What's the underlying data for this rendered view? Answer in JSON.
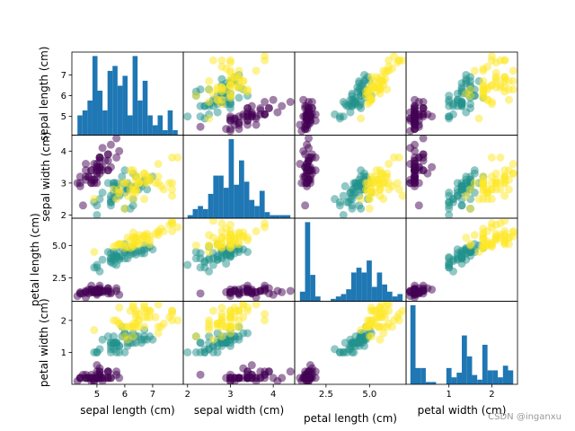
{
  "chart_data": {
    "type": "scatter-matrix",
    "variables": [
      "sepal length (cm)",
      "sepal width (cm)",
      "petal length (cm)",
      "petal width (cm)"
    ],
    "ranges": [
      [
        4.1,
        8.1
      ],
      [
        1.9,
        4.5
      ],
      [
        0.7,
        7.1
      ],
      [
        0.0,
        2.6
      ]
    ],
    "ticks": [
      [
        5,
        6,
        7
      ],
      [
        2,
        3,
        4
      ],
      [
        2.5,
        5.0
      ],
      [
        1,
        2
      ]
    ],
    "tick_labels": [
      [
        "5",
        "6",
        "7"
      ],
      [
        "2",
        "3",
        "4"
      ],
      [
        "2.5",
        "5.0"
      ],
      [
        "1",
        "2"
      ]
    ],
    "histogram_color": "#1f77b4",
    "histogram_bins": 20,
    "class_colors": {
      "setosa": "#440154",
      "versicolor": "#21918c",
      "virginica": "#fde725"
    },
    "point_alpha": 0.5,
    "classes": {
      "setosa": [
        [
          5.1,
          3.5,
          1.4,
          0.2
        ],
        [
          4.9,
          3.0,
          1.4,
          0.2
        ],
        [
          4.7,
          3.2,
          1.3,
          0.2
        ],
        [
          4.6,
          3.1,
          1.5,
          0.2
        ],
        [
          5.0,
          3.6,
          1.4,
          0.2
        ],
        [
          5.4,
          3.9,
          1.7,
          0.4
        ],
        [
          4.6,
          3.4,
          1.4,
          0.3
        ],
        [
          5.0,
          3.4,
          1.5,
          0.2
        ],
        [
          4.4,
          2.9,
          1.4,
          0.2
        ],
        [
          4.9,
          3.1,
          1.5,
          0.1
        ],
        [
          5.4,
          3.7,
          1.5,
          0.2
        ],
        [
          4.8,
          3.4,
          1.6,
          0.2
        ],
        [
          4.8,
          3.0,
          1.4,
          0.1
        ],
        [
          4.3,
          3.0,
          1.1,
          0.1
        ],
        [
          5.8,
          4.0,
          1.2,
          0.2
        ],
        [
          5.7,
          4.4,
          1.5,
          0.4
        ],
        [
          5.4,
          3.9,
          1.3,
          0.4
        ],
        [
          5.1,
          3.5,
          1.4,
          0.3
        ],
        [
          5.7,
          3.8,
          1.7,
          0.3
        ],
        [
          5.1,
          3.8,
          1.5,
          0.3
        ],
        [
          5.4,
          3.4,
          1.7,
          0.2
        ],
        [
          5.1,
          3.7,
          1.5,
          0.4
        ],
        [
          4.6,
          3.6,
          1.0,
          0.2
        ],
        [
          5.1,
          3.3,
          1.7,
          0.5
        ],
        [
          4.8,
          3.4,
          1.9,
          0.2
        ],
        [
          5.0,
          3.0,
          1.6,
          0.2
        ],
        [
          5.0,
          3.4,
          1.6,
          0.4
        ],
        [
          5.2,
          3.5,
          1.5,
          0.2
        ],
        [
          5.2,
          3.4,
          1.4,
          0.2
        ],
        [
          4.7,
          3.2,
          1.6,
          0.2
        ],
        [
          4.8,
          3.1,
          1.6,
          0.2
        ],
        [
          5.4,
          3.4,
          1.5,
          0.4
        ],
        [
          5.2,
          4.1,
          1.5,
          0.1
        ],
        [
          5.5,
          4.2,
          1.4,
          0.2
        ],
        [
          4.9,
          3.1,
          1.5,
          0.2
        ],
        [
          5.0,
          3.2,
          1.2,
          0.2
        ],
        [
          5.5,
          3.5,
          1.3,
          0.2
        ],
        [
          4.9,
          3.6,
          1.4,
          0.1
        ],
        [
          4.4,
          3.0,
          1.3,
          0.2
        ],
        [
          5.1,
          3.4,
          1.5,
          0.2
        ],
        [
          5.0,
          3.5,
          1.3,
          0.3
        ],
        [
          4.5,
          2.3,
          1.3,
          0.3
        ],
        [
          4.4,
          3.2,
          1.3,
          0.2
        ],
        [
          5.0,
          3.5,
          1.6,
          0.6
        ],
        [
          5.1,
          3.8,
          1.9,
          0.4
        ],
        [
          4.8,
          3.0,
          1.4,
          0.3
        ],
        [
          5.1,
          3.8,
          1.6,
          0.2
        ],
        [
          4.6,
          3.2,
          1.4,
          0.2
        ],
        [
          5.3,
          3.7,
          1.5,
          0.2
        ],
        [
          5.0,
          3.3,
          1.4,
          0.2
        ]
      ],
      "versicolor": [
        [
          7.0,
          3.2,
          4.7,
          1.4
        ],
        [
          6.4,
          3.2,
          4.5,
          1.5
        ],
        [
          6.9,
          3.1,
          4.9,
          1.5
        ],
        [
          5.5,
          2.3,
          4.0,
          1.3
        ],
        [
          6.5,
          2.8,
          4.6,
          1.5
        ],
        [
          5.7,
          2.8,
          4.5,
          1.3
        ],
        [
          6.3,
          3.3,
          4.7,
          1.6
        ],
        [
          4.9,
          2.4,
          3.3,
          1.0
        ],
        [
          6.6,
          2.9,
          4.6,
          1.3
        ],
        [
          5.2,
          2.7,
          3.9,
          1.4
        ],
        [
          5.0,
          2.0,
          3.5,
          1.0
        ],
        [
          5.9,
          3.0,
          4.2,
          1.5
        ],
        [
          6.0,
          2.2,
          4.0,
          1.0
        ],
        [
          6.1,
          2.9,
          4.7,
          1.4
        ],
        [
          5.6,
          2.9,
          3.6,
          1.3
        ],
        [
          6.7,
          3.1,
          4.4,
          1.4
        ],
        [
          5.6,
          3.0,
          4.5,
          1.5
        ],
        [
          5.8,
          2.7,
          4.1,
          1.0
        ],
        [
          6.2,
          2.2,
          4.5,
          1.5
        ],
        [
          5.6,
          2.5,
          3.9,
          1.1
        ],
        [
          5.9,
          3.2,
          4.8,
          1.8
        ],
        [
          6.1,
          2.8,
          4.0,
          1.3
        ],
        [
          6.3,
          2.5,
          4.9,
          1.5
        ],
        [
          6.1,
          2.8,
          4.7,
          1.2
        ],
        [
          6.4,
          2.9,
          4.3,
          1.3
        ],
        [
          6.6,
          3.0,
          4.4,
          1.4
        ],
        [
          6.8,
          2.8,
          4.8,
          1.4
        ],
        [
          6.7,
          3.0,
          5.0,
          1.7
        ],
        [
          6.0,
          2.9,
          4.5,
          1.5
        ],
        [
          5.7,
          2.6,
          3.5,
          1.0
        ],
        [
          5.5,
          2.4,
          3.8,
          1.1
        ],
        [
          5.5,
          2.4,
          3.7,
          1.0
        ],
        [
          5.8,
          2.7,
          3.9,
          1.2
        ],
        [
          6.0,
          2.7,
          5.1,
          1.6
        ],
        [
          5.4,
          3.0,
          4.5,
          1.5
        ],
        [
          6.0,
          3.4,
          4.5,
          1.6
        ],
        [
          6.7,
          3.1,
          4.7,
          1.5
        ],
        [
          6.3,
          2.3,
          4.4,
          1.3
        ],
        [
          5.6,
          3.0,
          4.1,
          1.3
        ],
        [
          5.5,
          2.5,
          4.0,
          1.3
        ],
        [
          5.5,
          2.6,
          4.4,
          1.2
        ],
        [
          6.1,
          3.0,
          4.6,
          1.4
        ],
        [
          5.8,
          2.6,
          4.0,
          1.2
        ],
        [
          5.0,
          2.3,
          3.3,
          1.0
        ],
        [
          5.6,
          2.7,
          4.2,
          1.3
        ],
        [
          5.7,
          3.0,
          4.2,
          1.2
        ],
        [
          5.7,
          2.9,
          4.2,
          1.3
        ],
        [
          6.2,
          2.9,
          4.3,
          1.3
        ],
        [
          5.1,
          2.5,
          3.0,
          1.1
        ],
        [
          5.7,
          2.8,
          4.1,
          1.3
        ]
      ],
      "virginica": [
        [
          6.3,
          3.3,
          6.0,
          2.5
        ],
        [
          5.8,
          2.7,
          5.1,
          1.9
        ],
        [
          7.1,
          3.0,
          5.9,
          2.1
        ],
        [
          6.3,
          2.9,
          5.6,
          1.8
        ],
        [
          6.5,
          3.0,
          5.8,
          2.2
        ],
        [
          7.6,
          3.0,
          6.6,
          2.1
        ],
        [
          4.9,
          2.5,
          4.5,
          1.7
        ],
        [
          7.3,
          2.9,
          6.3,
          1.8
        ],
        [
          6.7,
          2.5,
          5.8,
          1.8
        ],
        [
          7.2,
          3.6,
          6.1,
          2.5
        ],
        [
          6.5,
          3.2,
          5.1,
          2.0
        ],
        [
          6.4,
          2.7,
          5.3,
          1.9
        ],
        [
          6.8,
          3.0,
          5.5,
          2.1
        ],
        [
          5.7,
          2.5,
          5.0,
          2.0
        ],
        [
          5.8,
          2.8,
          5.1,
          2.4
        ],
        [
          6.4,
          3.2,
          5.3,
          2.3
        ],
        [
          6.5,
          3.0,
          5.5,
          1.8
        ],
        [
          7.7,
          3.8,
          6.7,
          2.2
        ],
        [
          7.7,
          2.6,
          6.9,
          2.3
        ],
        [
          6.0,
          2.2,
          5.0,
          1.5
        ],
        [
          6.9,
          3.2,
          5.7,
          2.3
        ],
        [
          5.6,
          2.8,
          4.9,
          2.0
        ],
        [
          7.7,
          2.8,
          6.7,
          2.0
        ],
        [
          6.3,
          2.7,
          4.9,
          1.8
        ],
        [
          6.7,
          3.3,
          5.7,
          2.1
        ],
        [
          7.2,
          3.2,
          6.0,
          1.8
        ],
        [
          6.2,
          2.8,
          4.8,
          1.8
        ],
        [
          6.1,
          3.0,
          4.9,
          1.8
        ],
        [
          6.4,
          2.8,
          5.6,
          2.1
        ],
        [
          7.2,
          3.0,
          5.8,
          1.6
        ],
        [
          7.4,
          2.8,
          6.1,
          1.9
        ],
        [
          7.9,
          3.8,
          6.4,
          2.0
        ],
        [
          6.4,
          2.8,
          5.6,
          2.2
        ],
        [
          6.3,
          2.8,
          5.1,
          1.5
        ],
        [
          6.1,
          2.6,
          5.6,
          1.4
        ],
        [
          7.7,
          3.0,
          6.1,
          2.3
        ],
        [
          6.3,
          3.4,
          5.6,
          2.4
        ],
        [
          6.4,
          3.1,
          5.5,
          1.8
        ],
        [
          6.0,
          3.0,
          4.8,
          1.8
        ],
        [
          6.9,
          3.1,
          5.4,
          2.1
        ],
        [
          6.7,
          3.1,
          5.6,
          2.4
        ],
        [
          6.9,
          3.1,
          5.1,
          2.3
        ],
        [
          5.8,
          2.7,
          5.1,
          1.9
        ],
        [
          6.8,
          3.2,
          5.9,
          2.3
        ],
        [
          6.7,
          3.3,
          5.7,
          2.5
        ],
        [
          6.7,
          3.0,
          5.2,
          2.3
        ],
        [
          6.3,
          2.5,
          5.0,
          1.9
        ],
        [
          6.5,
          3.0,
          5.2,
          2.0
        ],
        [
          6.2,
          3.4,
          5.4,
          2.3
        ],
        [
          5.9,
          3.0,
          5.1,
          1.8
        ]
      ]
    }
  },
  "watermark": "CSDN @inganxu"
}
